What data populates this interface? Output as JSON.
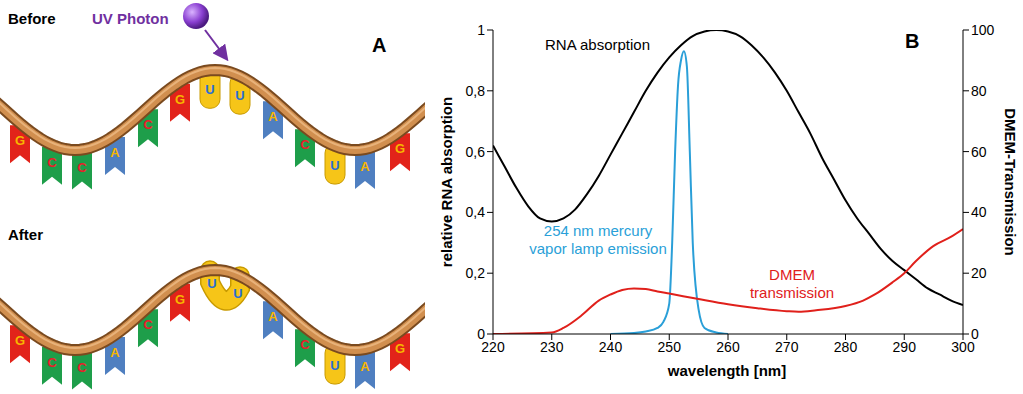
{
  "diagram": {
    "panel_label": "A",
    "base_colors": {
      "G": "#e2231a",
      "C": "#1e9e4a",
      "A": "#4f7fc0",
      "U": "#f6c518"
    },
    "before": {
      "label": "Before",
      "photon_label": "UV Photon",
      "bases": [
        "G",
        "C",
        "C",
        "A",
        "C",
        "G",
        "U",
        "U",
        "A",
        "C",
        "U",
        "A",
        "G"
      ]
    },
    "after": {
      "label": "After",
      "bases": [
        "G",
        "C",
        "C",
        "A",
        "C",
        "G",
        "U",
        "U",
        "A",
        "C",
        "U",
        "A",
        "G"
      ],
      "dimer": [
        6,
        7
      ]
    }
  },
  "chart_data": {
    "type": "line",
    "panel_label": "B",
    "x_label": "wavelength [nm]",
    "y_label": "relative RNA absorption",
    "y2_label": "DMEM-Transmission",
    "xlim": [
      220,
      300
    ],
    "xticks": [
      220,
      230,
      240,
      250,
      260,
      270,
      280,
      290,
      300
    ],
    "ylim": [
      0,
      1
    ],
    "yticks": [
      0,
      {
        "value": 0.2,
        "label": "0,2"
      },
      {
        "value": 0.4,
        "label": "0,4"
      },
      {
        "value": 0.6,
        "label": "0,6"
      },
      {
        "value": 0.8,
        "label": "0,8"
      },
      1
    ],
    "y2lim": [
      0,
      100
    ],
    "y2ticks": [
      0,
      20,
      40,
      60,
      80,
      100
    ],
    "series": [
      {
        "label": [
          "RNA absorption"
        ],
        "color": "#000000",
        "axis": "y",
        "x": [
          220,
          222,
          224,
          226,
          228,
          230,
          232,
          234,
          236,
          238,
          240,
          242,
          244,
          246,
          248,
          250,
          252,
          254,
          256,
          258,
          260,
          262,
          264,
          266,
          268,
          270,
          272,
          274,
          276,
          278,
          280,
          282,
          284,
          286,
          288,
          290,
          292,
          294,
          296,
          298,
          300
        ],
        "values": [
          0.62,
          0.55,
          0.48,
          0.42,
          0.38,
          0.37,
          0.38,
          0.41,
          0.46,
          0.52,
          0.59,
          0.66,
          0.73,
          0.8,
          0.86,
          0.91,
          0.95,
          0.98,
          0.995,
          1.0,
          0.995,
          0.98,
          0.95,
          0.91,
          0.86,
          0.8,
          0.73,
          0.66,
          0.58,
          0.51,
          0.44,
          0.38,
          0.33,
          0.28,
          0.24,
          0.21,
          0.18,
          0.15,
          0.13,
          0.11,
          0.095
        ]
      },
      {
        "label": [
          "254 nm mercury",
          "vapor lamp emission"
        ],
        "color": "#2a9fd8",
        "axis": "y",
        "x": [
          240,
          244,
          246,
          248,
          249,
          250,
          250.5,
          251,
          251.5,
          252,
          252.5,
          253,
          253.5,
          254,
          255,
          256,
          258,
          260
        ],
        "values": [
          0,
          0.003,
          0.008,
          0.02,
          0.04,
          0.1,
          0.3,
          0.6,
          0.82,
          0.9,
          0.93,
          0.88,
          0.6,
          0.3,
          0.08,
          0.02,
          0.005,
          0
        ]
      },
      {
        "label": [
          "DMEM",
          "transmission"
        ],
        "color": "#e0201b",
        "axis": "y2",
        "x": [
          220,
          230,
          232,
          235,
          238,
          240,
          242,
          244,
          246,
          248,
          250,
          255,
          260,
          265,
          270,
          272,
          275,
          280,
          283,
          285,
          288,
          290,
          292,
          295,
          298,
          300
        ],
        "values": [
          0,
          0.5,
          2,
          6,
          11,
          13,
          14.5,
          15,
          14.8,
          14,
          13.3,
          11.5,
          9.8,
          8.5,
          7.5,
          7.3,
          7.8,
          9.2,
          11,
          13,
          17,
          20,
          24,
          29,
          32,
          34.5
        ]
      }
    ]
  }
}
